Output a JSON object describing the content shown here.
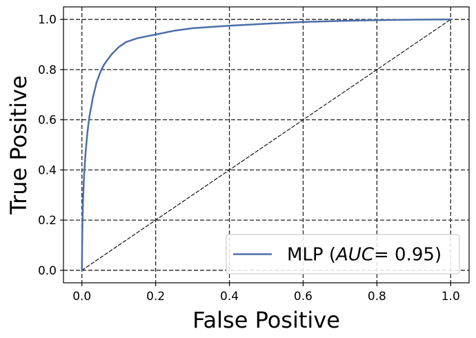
{
  "chart_data": {
    "type": "line",
    "title": "",
    "xlabel": "False Positive",
    "ylabel": "True Positive",
    "xlim": [
      -0.05,
      1.05
    ],
    "ylim": [
      -0.05,
      1.05
    ],
    "x_ticks": [
      "0.0",
      "0.2",
      "0.4",
      "0.6",
      "0.8",
      "1.0"
    ],
    "y_ticks": [
      "0.0",
      "0.2",
      "0.4",
      "0.6",
      "0.8",
      "1.0"
    ],
    "grid": true,
    "legend_position": "lower-right",
    "series": [
      {
        "name": "MLP",
        "legend_prefix": "MLP (",
        "legend_italic": "AUC",
        "legend_suffix": "= 0.95)",
        "color": "#4c6ea9",
        "x": [
          0.0,
          0.001,
          0.003,
          0.006,
          0.01,
          0.015,
          0.02,
          0.03,
          0.04,
          0.05,
          0.06,
          0.07,
          0.08,
          0.09,
          0.1,
          0.12,
          0.15,
          0.2,
          0.25,
          0.3,
          0.4,
          0.5,
          0.6,
          0.7,
          0.8,
          0.9,
          1.0
        ],
        "y": [
          0.0,
          0.15,
          0.28,
          0.38,
          0.47,
          0.55,
          0.61,
          0.69,
          0.75,
          0.79,
          0.82,
          0.84,
          0.86,
          0.875,
          0.89,
          0.91,
          0.925,
          0.94,
          0.955,
          0.965,
          0.975,
          0.983,
          0.99,
          0.994,
          0.997,
          0.999,
          1.0
        ]
      },
      {
        "name": "",
        "color": "#000000",
        "dashed": true,
        "x": [
          0.0,
          1.0
        ],
        "y": [
          0.0,
          1.0
        ]
      }
    ]
  }
}
